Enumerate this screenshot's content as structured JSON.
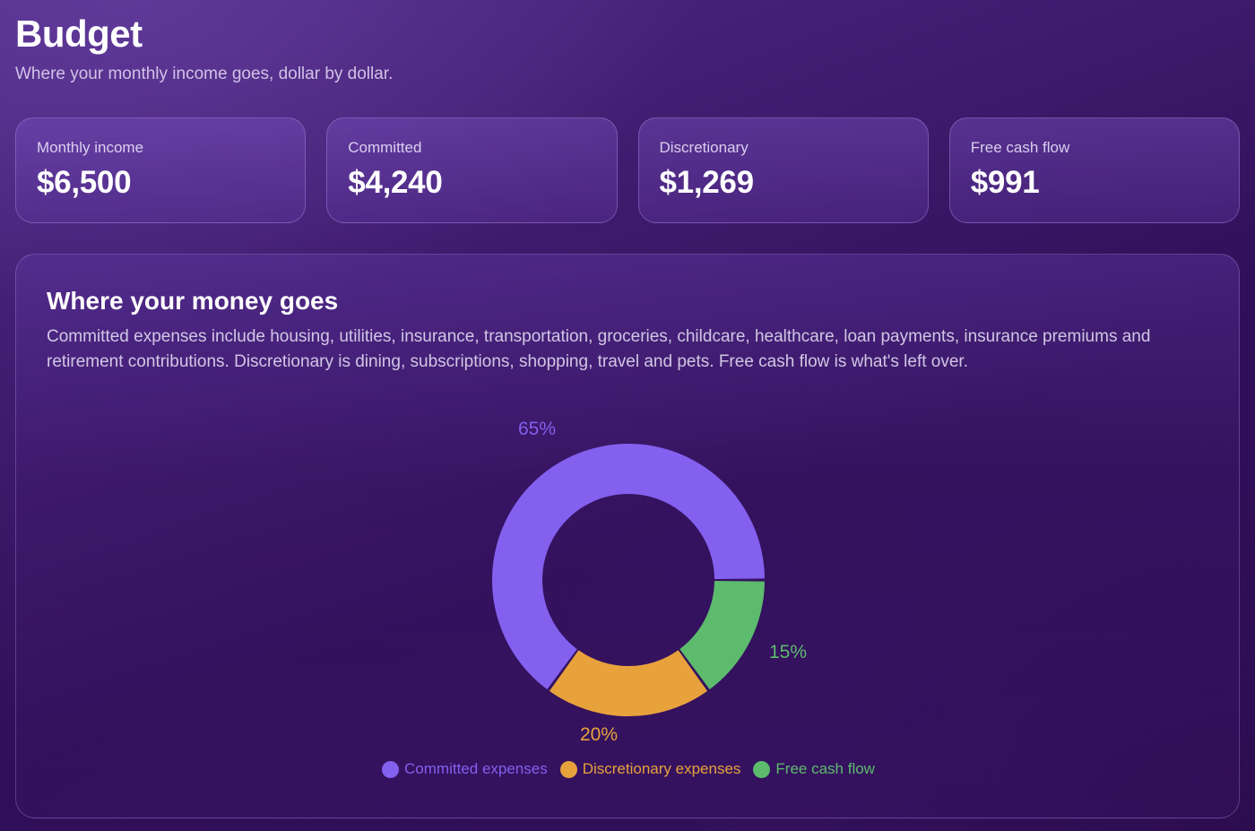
{
  "header": {
    "title": "Budget",
    "subtitle": "Where your monthly income goes, dollar by dollar."
  },
  "stats": [
    {
      "label": "Monthly income",
      "value": "$6,500"
    },
    {
      "label": "Committed",
      "value": "$4,240"
    },
    {
      "label": "Discretionary",
      "value": "$1,269"
    },
    {
      "label": "Free cash flow",
      "value": "$991"
    }
  ],
  "panel": {
    "title": "Where your money goes",
    "description": "Committed expenses include housing, utilities, insurance, transportation, groceries, childcare, healthcare, loan payments, insurance premiums and retirement contributions. Discretionary is dining, subscriptions, shopping, travel and pets. Free cash flow is what's left over."
  },
  "chart_data": {
    "type": "pie",
    "variant": "donut",
    "categories": [
      "Committed expenses",
      "Discretionary expenses",
      "Free cash flow"
    ],
    "values": [
      65,
      20,
      15
    ],
    "data_labels": [
      "65%",
      "20%",
      "15%"
    ],
    "colors": [
      "#8360ee",
      "#e8a23c",
      "#5dbb6e"
    ],
    "legend_position": "bottom"
  }
}
